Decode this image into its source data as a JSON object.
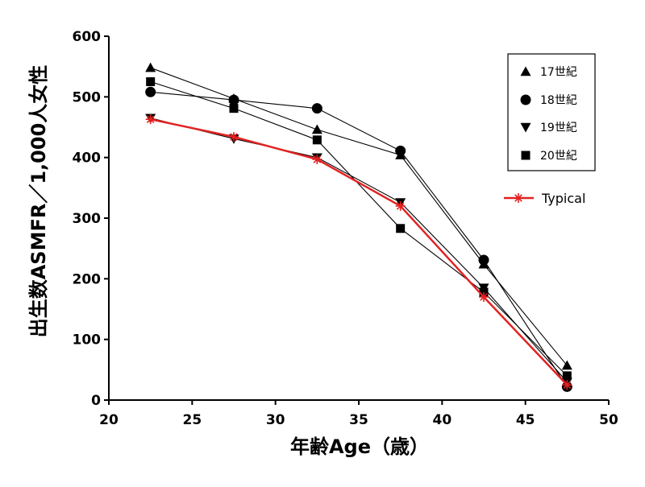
{
  "chart_data": {
    "type": "line",
    "title": "",
    "xlabel": "年齢Age（歳）",
    "ylabel": "出生数ASMFR／1,000人女性",
    "xlim": [
      20,
      50
    ],
    "ylim": [
      0,
      600
    ],
    "x_ticks": [
      "20",
      "25",
      "30",
      "35",
      "40",
      "45",
      "50"
    ],
    "y_ticks": [
      "0",
      "100",
      "200",
      "300",
      "400",
      "500",
      "600"
    ],
    "x": [
      22.5,
      27.5,
      32.5,
      37.5,
      42.5,
      47.5
    ],
    "grid": false,
    "legend_position": "top-right",
    "series": [
      {
        "name": "17世紀",
        "marker": "triangle-up",
        "color": "#000000",
        "values": [
          548,
          497,
          446,
          404,
          224,
          57
        ]
      },
      {
        "name": "18世紀",
        "marker": "circle",
        "color": "#000000",
        "values": [
          508,
          495,
          481,
          411,
          231,
          22
        ]
      },
      {
        "name": "19世紀",
        "marker": "triangle-down",
        "color": "#000000",
        "values": [
          465,
          431,
          400,
          326,
          185,
          30
        ]
      },
      {
        "name": "20世紀",
        "marker": "square",
        "color": "#000000",
        "values": [
          525,
          481,
          429,
          283,
          178,
          40
        ]
      },
      {
        "name": "Typical",
        "marker": "asterisk",
        "color": "#e32121",
        "values": [
          463,
          434,
          397,
          320,
          170,
          25
        ]
      }
    ]
  }
}
